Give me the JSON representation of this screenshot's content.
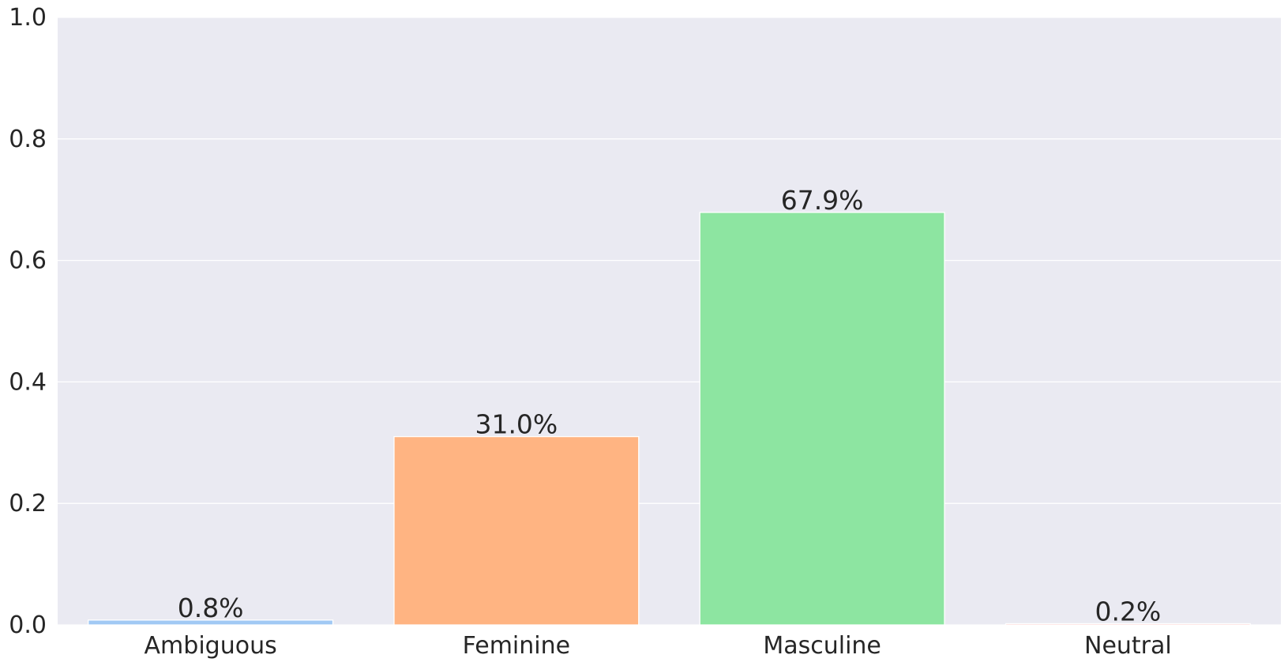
{
  "chart_data": {
    "type": "bar",
    "title": "",
    "xlabel": "",
    "ylabel": "",
    "categories": [
      "Ambiguous",
      "Feminine",
      "Masculine",
      "Neutral"
    ],
    "values": [
      0.008,
      0.31,
      0.679,
      0.002
    ],
    "data_labels": [
      "0.8%",
      "31.0%",
      "67.9%",
      "0.2%"
    ],
    "colors": [
      "#a1c9f4",
      "#ffb482",
      "#8de5a1",
      "#ff9f9b"
    ],
    "ylim": [
      0,
      1.0
    ],
    "yticks": [
      0.0,
      0.2,
      0.4,
      0.6,
      0.8,
      1.0
    ],
    "ytick_labels": [
      "0.0",
      "0.2",
      "0.4",
      "0.6",
      "0.8",
      "1.0"
    ],
    "grid": true,
    "background": "#eaeaf2",
    "gridline_color": "#ffffff"
  }
}
